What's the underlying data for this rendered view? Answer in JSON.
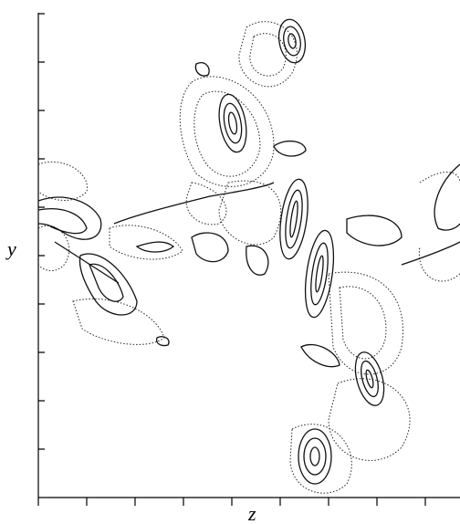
{
  "figure": {
    "y_label": "y",
    "x_label": "z"
  }
}
